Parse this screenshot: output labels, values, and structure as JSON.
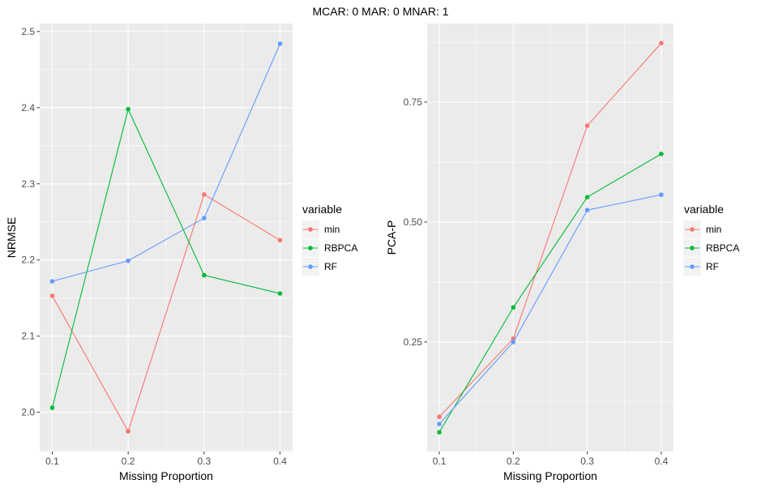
{
  "title": "MCAR: 0 MAR:  0 MNAR:  1",
  "legend": {
    "title": "variable",
    "entries": [
      {
        "name": "min",
        "color": "#F8766D"
      },
      {
        "name": "RBPCA",
        "color": "#00BA38"
      },
      {
        "name": "RF",
        "color": "#619CFF"
      }
    ]
  },
  "chart_data": [
    {
      "type": "line",
      "xlabel": "Missing Proportion",
      "ylabel": "NRMSE",
      "x": [
        0.1,
        0.2,
        0.3,
        0.4
      ],
      "xticks": [
        "0.1",
        "0.2",
        "0.3",
        "0.4"
      ],
      "yticks": [
        2.0,
        2.1,
        2.2,
        2.3,
        2.4,
        2.5
      ],
      "ytick_labels": [
        "2.0",
        "2.1",
        "2.2",
        "2.3",
        "2.4",
        "2.5"
      ],
      "xlim": [
        0.0835,
        0.4165
      ],
      "ylim": [
        1.9485,
        2.5105
      ],
      "grid": true,
      "legend_position": "right",
      "series": [
        {
          "name": "min",
          "values": [
            2.153,
            1.975,
            2.286,
            2.226
          ]
        },
        {
          "name": "RBPCA",
          "values": [
            2.006,
            2.398,
            2.18,
            2.156
          ]
        },
        {
          "name": "RF",
          "values": [
            2.172,
            2.199,
            2.255,
            2.484
          ]
        }
      ]
    },
    {
      "type": "line",
      "xlabel": "Missing Proportion",
      "ylabel": "PCA-P",
      "x": [
        0.1,
        0.2,
        0.3,
        0.4
      ],
      "xticks": [
        "0.1",
        "0.2",
        "0.3",
        "0.4"
      ],
      "yticks": [
        0.25,
        0.5,
        0.75
      ],
      "ytick_labels": [
        "0.25",
        "0.50",
        "0.75"
      ],
      "xlim": [
        0.0835,
        0.4165
      ],
      "ylim": [
        0.0217,
        0.9139
      ],
      "grid": true,
      "legend_position": "right",
      "series": [
        {
          "name": "min",
          "values": [
            0.094,
            0.257,
            0.701,
            0.873
          ]
        },
        {
          "name": "RBPCA",
          "values": [
            0.062,
            0.322,
            0.552,
            0.642
          ]
        },
        {
          "name": "RF",
          "values": [
            0.079,
            0.25,
            0.525,
            0.557
          ]
        }
      ]
    }
  ]
}
